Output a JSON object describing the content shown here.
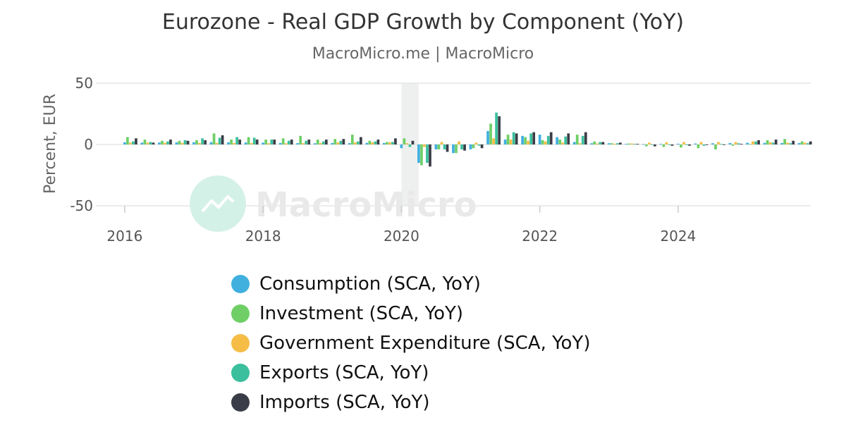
{
  "title": "Eurozone - Real GDP Growth by Component (YoY)",
  "subtitle": "MacroMicro.me | MacroMicro",
  "watermark": "MacroMicro",
  "colors": {
    "consumption": "#41b0df",
    "investment": "#6fcf66",
    "government": "#f5bd46",
    "exports": "#3bbf9d",
    "imports": "#3a3d47",
    "grid": "#e6e6e6",
    "shade": "#eef0ef"
  },
  "chart_data": {
    "type": "bar",
    "ylabel": "Percent, EUR",
    "xlabel": "",
    "ylim": [
      -50,
      50
    ],
    "xlim": [
      "2015-08",
      "2025-12"
    ],
    "y_ticks": [
      50,
      0,
      -50
    ],
    "x_ticks": [
      "2016",
      "2018",
      "2020",
      "2022",
      "2024"
    ],
    "shaded_period": [
      "2020-01",
      "2020-04"
    ],
    "legend_position": "bottom",
    "categories": [
      "2016 Q1",
      "2016 Q2",
      "2016 Q3",
      "2016 Q4",
      "2017 Q1",
      "2017 Q2",
      "2017 Q3",
      "2017 Q4",
      "2018 Q1",
      "2018 Q2",
      "2018 Q3",
      "2018 Q4",
      "2019 Q1",
      "2019 Q2",
      "2019 Q3",
      "2019 Q4",
      "2020 Q1",
      "2020 Q2",
      "2020 Q3",
      "2020 Q4",
      "2021 Q1",
      "2021 Q2",
      "2021 Q3",
      "2021 Q4",
      "2022 Q1",
      "2022 Q2",
      "2022 Q3",
      "2022 Q4",
      "2023 Q1",
      "2023 Q2",
      "2023 Q3",
      "2023 Q4",
      "2024 Q1",
      "2024 Q2",
      "2024 Q3",
      "2024 Q4",
      "2025 Q1",
      "2025 Q2",
      "2025 Q3",
      "2025 Q4"
    ],
    "series": [
      {
        "name": "Consumption (SCA, YoY)",
        "key": "consumption",
        "values": [
          1.8,
          1.5,
          1.6,
          1.7,
          1.8,
          1.9,
          1.8,
          1.6,
          1.5,
          1.2,
          1.1,
          1.0,
          1.2,
          1.1,
          1.3,
          1.2,
          -3.0,
          -15.0,
          -4.0,
          -7.0,
          -4.0,
          11.0,
          4.0,
          7.0,
          8.0,
          6.0,
          2.0,
          1.0,
          1.0,
          0.5,
          0.3,
          0.5,
          0.6,
          0.8,
          1.0,
          1.2,
          1.4,
          1.3,
          1.2,
          1.1
        ]
      },
      {
        "name": "Investment (SCA, YoY)",
        "key": "investment",
        "values": [
          6.0,
          4.0,
          3.0,
          3.0,
          3.5,
          9.0,
          4.0,
          6.0,
          4.0,
          5.0,
          7.0,
          4.0,
          4.5,
          8.0,
          3.0,
          2.0,
          5.0,
          -17.0,
          -4.0,
          -7.0,
          -3.0,
          17.0,
          8.0,
          6.0,
          3.5,
          4.0,
          8.0,
          2.5,
          1.0,
          0.8,
          -1.5,
          -2.0,
          -2.5,
          -3.0,
          -4.0,
          -1.0,
          0.5,
          3.5,
          4.5,
          2.5
        ]
      },
      {
        "name": "Government Expenditure (SCA, YoY)",
        "key": "government",
        "values": [
          1.5,
          1.5,
          1.4,
          1.3,
          1.2,
          1.3,
          1.2,
          1.1,
          1.0,
          1.0,
          1.1,
          1.2,
          1.7,
          1.7,
          1.8,
          1.7,
          1.0,
          -2.0,
          2.0,
          2.5,
          1.5,
          5.0,
          4.0,
          3.0,
          2.5,
          1.5,
          1.0,
          0.8,
          0.6,
          0.8,
          1.5,
          1.8,
          2.0,
          2.0,
          2.0,
          2.0,
          2.5,
          1.8,
          1.5,
          1.5
        ]
      },
      {
        "name": "Exports (SCA, YoY)",
        "key": "exports",
        "values": [
          2.5,
          2.0,
          2.5,
          3.5,
          5.0,
          5.5,
          6.0,
          5.5,
          4.0,
          3.0,
          3.0,
          2.5,
          3.0,
          2.5,
          2.5,
          2.0,
          -2.0,
          -15.0,
          -4.0,
          -4.0,
          -1.0,
          26.0,
          10.0,
          9.0,
          7.0,
          6.5,
          7.0,
          2.0,
          1.0,
          0.5,
          -0.5,
          -0.5,
          -0.5,
          -1.0,
          0.5,
          1.0,
          2.5,
          1.5,
          1.0,
          1.0
        ]
      },
      {
        "name": "Imports (SCA, YoY)",
        "key": "imports",
        "values": [
          5.0,
          1.5,
          4.0,
          3.0,
          3.5,
          7.5,
          4.0,
          4.0,
          4.0,
          4.0,
          4.0,
          4.0,
          4.5,
          6.0,
          4.0,
          5.0,
          3.0,
          -18.0,
          -6.0,
          -5.0,
          -3.0,
          23.0,
          9.0,
          10.0,
          10.0,
          9.0,
          10.0,
          2.0,
          1.5,
          0.5,
          -1.5,
          -1.0,
          -1.0,
          -0.5,
          -0.5,
          0.5,
          3.5,
          4.0,
          3.0,
          2.5
        ]
      }
    ]
  }
}
